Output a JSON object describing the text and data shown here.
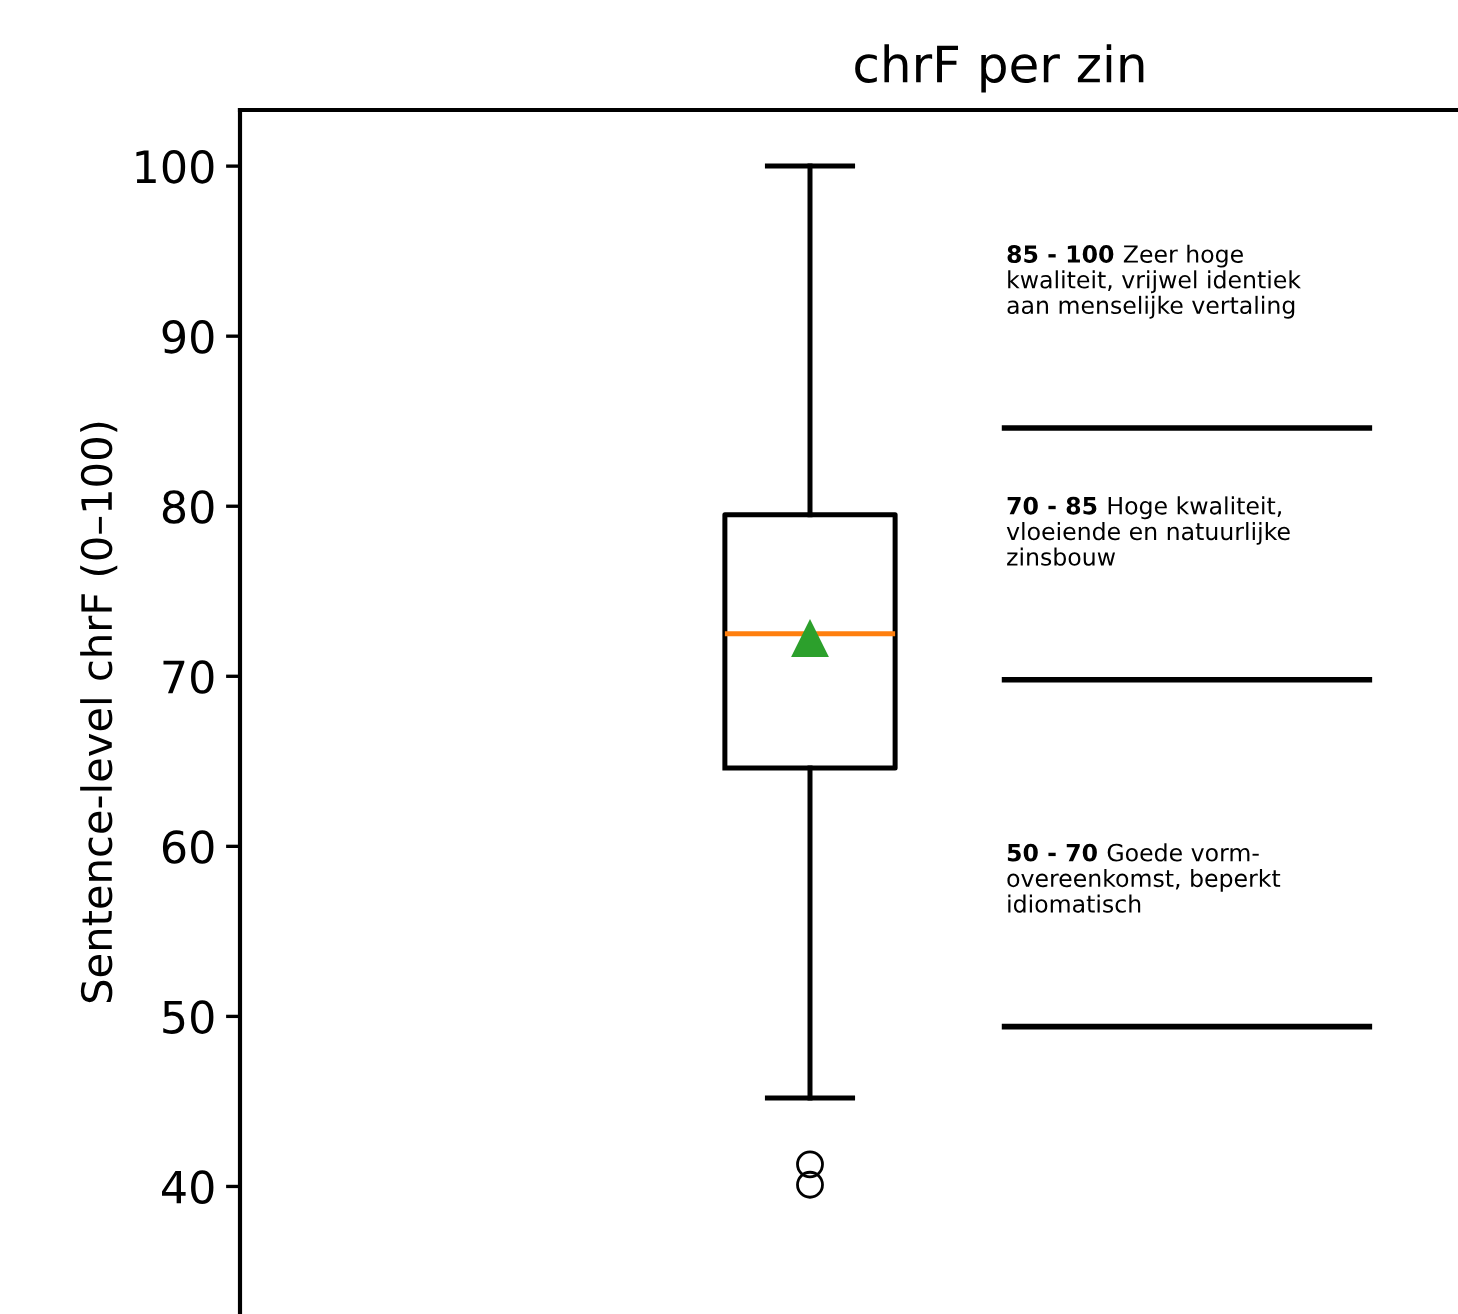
{
  "chart_data": {
    "type": "box",
    "title": "chrF per zin",
    "ylabel": "Sentence-level chrF (0–100)",
    "categories": [
      null
    ],
    "boxes": [
      {
        "low": 45.2,
        "q1": 64.6,
        "median": 72.5,
        "q3": 79.5,
        "high": 100,
        "mean": 72.2,
        "outliers": [
          41.3,
          40.1
        ]
      }
    ],
    "ylim": [
      32.5,
      103.3
    ],
    "yticks": [
      40,
      50,
      60,
      70,
      80,
      90,
      100
    ],
    "grid": false,
    "ref_lines": [
      {
        "axis": "y",
        "value": 84.6,
        "color": "#000000"
      },
      {
        "axis": "y",
        "value": 69.8,
        "color": "#000000"
      },
      {
        "axis": "y",
        "value": 49.4,
        "color": "#000000"
      }
    ],
    "annotations": [
      "85 - 100 Zeer hoge\nkwaliteit, vrijwel identiek\naan menselijke vertaling",
      "70 - 85 Hoge kwaliteit,\nvloeiende en natuurlijke\nzinsbouw",
      "50 - 70  Goede vorm-\novereenkomst, beperkt\nidiomatisch"
    ]
  }
}
